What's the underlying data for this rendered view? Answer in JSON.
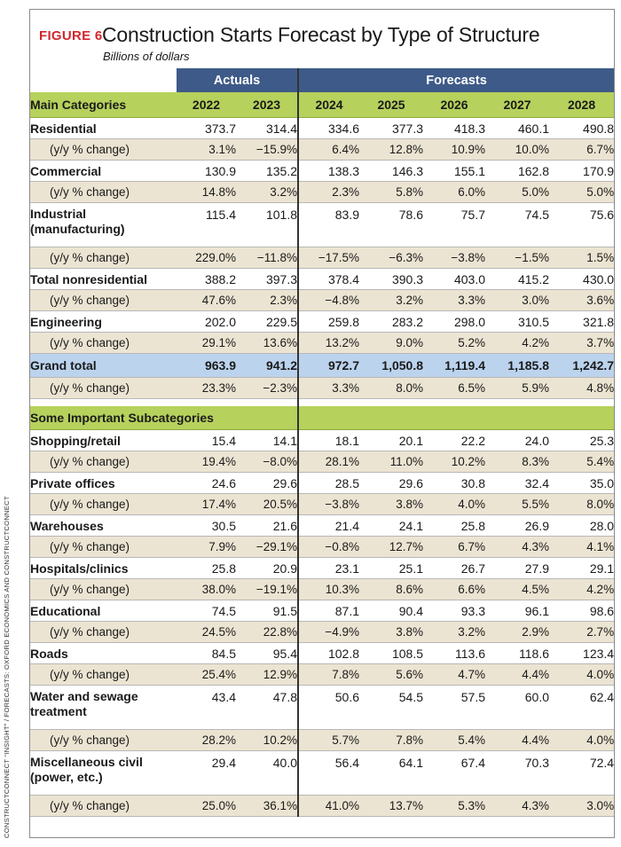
{
  "figure_label": "FIGURE 6",
  "title": "Construction Starts Forecast by Type of Structure",
  "subtitle": "Billions of dollars",
  "side_credit": "CONSTRUCTCONNECT “INSIGHT” / FORECASTS: OXFORD ECONOMICS AND CONSTRUCTCONNECT",
  "chart_data": {
    "type": "table",
    "groups": [
      {
        "label": "Actuals",
        "years": [
          "2022",
          "2023"
        ]
      },
      {
        "label": "Forecasts",
        "years": [
          "2024",
          "2025",
          "2026",
          "2027",
          "2028"
        ]
      }
    ],
    "main_header": "Main Categories",
    "sub_header": "Some Important Subcategories",
    "years": [
      "2022",
      "2023",
      "2024",
      "2025",
      "2026",
      "2027",
      "2028"
    ],
    "change_label": "(y/y % change)",
    "main_rows": [
      {
        "name": "Residential",
        "values": [
          "373.7",
          "314.4",
          "334.6",
          "377.3",
          "418.3",
          "460.1",
          "490.8"
        ],
        "changes": [
          "3.1%",
          "−15.9%",
          "6.4%",
          "12.8%",
          "10.9%",
          "10.0%",
          "6.7%"
        ]
      },
      {
        "name": "Commercial",
        "values": [
          "130.9",
          "135.2",
          "138.3",
          "146.3",
          "155.1",
          "162.8",
          "170.9"
        ],
        "changes": [
          "14.8%",
          "3.2%",
          "2.3%",
          "5.8%",
          "6.0%",
          "5.0%",
          "5.0%"
        ]
      },
      {
        "name": "Industrial (manufacturing)",
        "values": [
          "115.4",
          "101.8",
          "83.9",
          "78.6",
          "75.7",
          "74.5",
          "75.6"
        ],
        "changes": [
          "229.0%",
          "−11.8%",
          "−17.5%",
          "−6.3%",
          "−3.8%",
          "−1.5%",
          "1.5%"
        ]
      },
      {
        "name": "Total nonresidential",
        "values": [
          "388.2",
          "397.3",
          "378.4",
          "390.3",
          "403.0",
          "415.2",
          "430.0"
        ],
        "changes": [
          "47.6%",
          "2.3%",
          "−4.8%",
          "3.2%",
          "3.3%",
          "3.0%",
          "3.6%"
        ]
      },
      {
        "name": "Engineering",
        "values": [
          "202.0",
          "229.5",
          "259.8",
          "283.2",
          "298.0",
          "310.5",
          "321.8"
        ],
        "changes": [
          "29.1%",
          "13.6%",
          "13.2%",
          "9.0%",
          "5.2%",
          "4.2%",
          "3.7%"
        ]
      }
    ],
    "grand_total": {
      "name": "Grand total",
      "values": [
        "963.9",
        "941.2",
        "972.7",
        "1,050.8",
        "1,119.4",
        "1,185.8",
        "1,242.7"
      ],
      "changes": [
        "23.3%",
        "−2.3%",
        "3.3%",
        "8.0%",
        "6.5%",
        "5.9%",
        "4.8%"
      ]
    },
    "sub_rows": [
      {
        "name": "Shopping/retail",
        "values": [
          "15.4",
          "14.1",
          "18.1",
          "20.1",
          "22.2",
          "24.0",
          "25.3"
        ],
        "changes": [
          "19.4%",
          "−8.0%",
          "28.1%",
          "11.0%",
          "10.2%",
          "8.3%",
          "5.4%"
        ]
      },
      {
        "name": "Private offices",
        "values": [
          "24.6",
          "29.6",
          "28.5",
          "29.6",
          "30.8",
          "32.4",
          "35.0"
        ],
        "changes": [
          "17.4%",
          "20.5%",
          "−3.8%",
          "3.8%",
          "4.0%",
          "5.5%",
          "8.0%"
        ]
      },
      {
        "name": "Warehouses",
        "values": [
          "30.5",
          "21.6",
          "21.4",
          "24.1",
          "25.8",
          "26.9",
          "28.0"
        ],
        "changes": [
          "7.9%",
          "−29.1%",
          "−0.8%",
          "12.7%",
          "6.7%",
          "4.3%",
          "4.1%"
        ]
      },
      {
        "name": "Hospitals/clinics",
        "values": [
          "25.8",
          "20.9",
          "23.1",
          "25.1",
          "26.7",
          "27.9",
          "29.1"
        ],
        "changes": [
          "38.0%",
          "−19.1%",
          "10.3%",
          "8.6%",
          "6.6%",
          "4.5%",
          "4.2%"
        ]
      },
      {
        "name": "Educational",
        "values": [
          "74.5",
          "91.5",
          "87.1",
          "90.4",
          "93.3",
          "96.1",
          "98.6"
        ],
        "changes": [
          "24.5%",
          "22.8%",
          "−4.9%",
          "3.8%",
          "3.2%",
          "2.9%",
          "2.7%"
        ]
      },
      {
        "name": "Roads",
        "values": [
          "84.5",
          "95.4",
          "102.8",
          "108.5",
          "113.6",
          "118.6",
          "123.4"
        ],
        "changes": [
          "25.4%",
          "12.9%",
          "7.8%",
          "5.6%",
          "4.7%",
          "4.4%",
          "4.0%"
        ]
      },
      {
        "name": "Water and sewage treatment",
        "values": [
          "43.4",
          "47.8",
          "50.6",
          "54.5",
          "57.5",
          "60.0",
          "62.4"
        ],
        "changes": [
          "28.2%",
          "10.2%",
          "5.7%",
          "7.8%",
          "5.4%",
          "4.4%",
          "4.0%"
        ]
      },
      {
        "name": "Miscellaneous civil (power, etc.)",
        "values": [
          "29.4",
          "40.0",
          "56.4",
          "64.1",
          "67.4",
          "70.3",
          "72.4"
        ],
        "changes": [
          "25.0%",
          "36.1%",
          "41.0%",
          "13.7%",
          "5.3%",
          "4.3%",
          "3.0%"
        ]
      }
    ],
    "colors": {
      "group_header": "#3e5a88",
      "category_header": "#b6d15c",
      "change_row": "#ece4d2",
      "grand_total": "#bcd3ee",
      "figure_label": "#d0282e"
    }
  }
}
